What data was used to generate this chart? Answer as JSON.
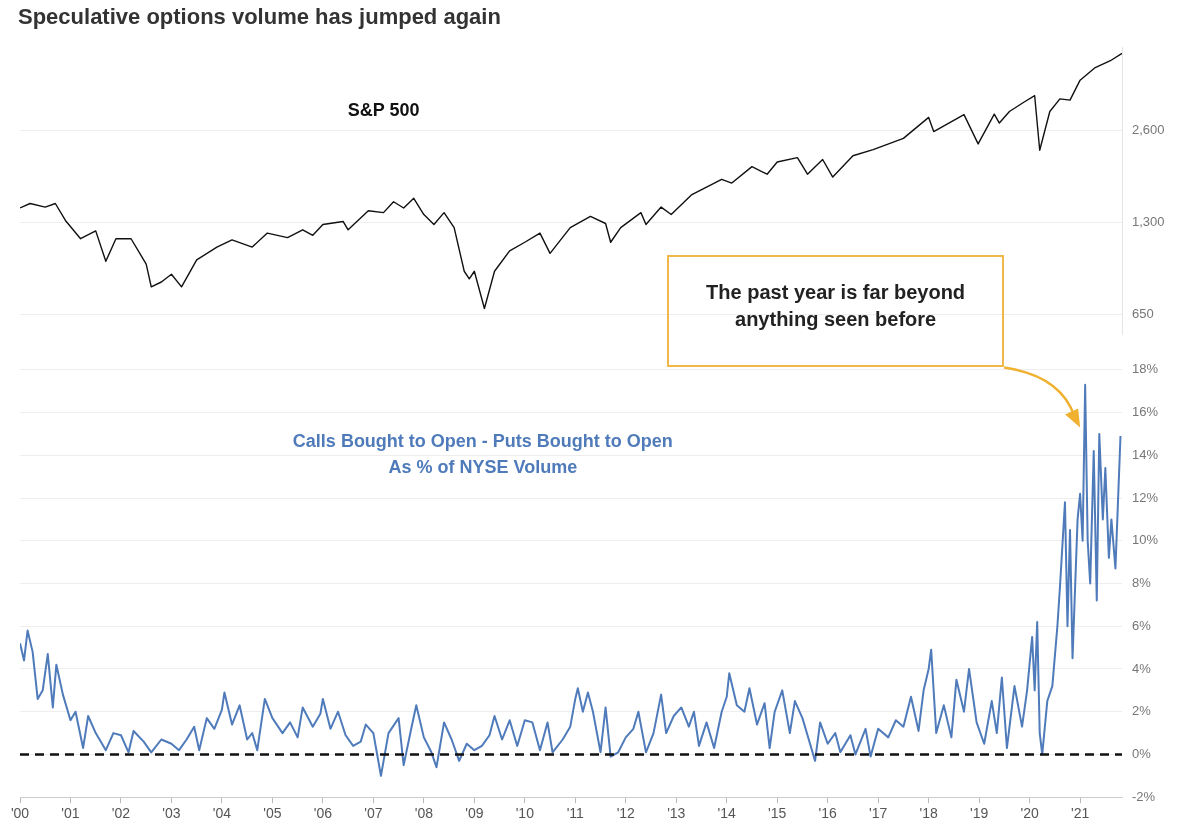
{
  "chart_data": [
    {
      "type": "line",
      "title": "Speculative options volume has jumped again",
      "log": "y",
      "grid": "y",
      "tick_labels": "y",
      "xlim": [
        2000,
        2021.83
      ],
      "ylim": [
        560,
        4850
      ],
      "yticks": [
        650,
        {
          "value": 1300,
          "label": "1,300"
        },
        {
          "value": 2600,
          "label": "2,600"
        }
      ],
      "x": [
        2000.0,
        2000.2,
        2000.5,
        2000.7,
        2000.9,
        2001.2,
        2001.5,
        2001.7,
        2001.9,
        2002.2,
        2002.5,
        2002.6,
        2002.8,
        2003.0,
        2003.2,
        2003.5,
        2003.9,
        2004.2,
        2004.6,
        2004.9,
        2005.3,
        2005.6,
        2005.8,
        2006.0,
        2006.4,
        2006.5,
        2006.9,
        2007.2,
        2007.4,
        2007.6,
        2007.8,
        2008.0,
        2008.2,
        2008.4,
        2008.6,
        2008.8,
        2008.9,
        2009.0,
        2009.2,
        2009.4,
        2009.7,
        2010.0,
        2010.3,
        2010.5,
        2010.9,
        2011.3,
        2011.6,
        2011.7,
        2011.9,
        2012.3,
        2012.4,
        2012.7,
        2012.9,
        2013.3,
        2013.9,
        2014.1,
        2014.5,
        2014.8,
        2015.0,
        2015.4,
        2015.6,
        2015.9,
        2016.1,
        2016.5,
        2016.9,
        2017.5,
        2018.0,
        2018.1,
        2018.7,
        2018.98,
        2019.3,
        2019.4,
        2019.6,
        2019.9,
        2020.1,
        2020.2,
        2020.4,
        2020.6,
        2020.8,
        2021.0,
        2021.3,
        2021.6,
        2021.83
      ],
      "series": [
        {
          "name": "S&P 500",
          "color": "#111111",
          "values": [
            1450,
            1500,
            1460,
            1500,
            1320,
            1150,
            1220,
            970,
            1150,
            1150,
            950,
            800,
            830,
            880,
            800,
            980,
            1080,
            1140,
            1080,
            1200,
            1160,
            1230,
            1180,
            1280,
            1310,
            1230,
            1420,
            1400,
            1520,
            1450,
            1560,
            1380,
            1280,
            1400,
            1250,
            900,
            850,
            900,
            680,
            900,
            1050,
            1120,
            1200,
            1030,
            1250,
            1360,
            1290,
            1120,
            1250,
            1400,
            1280,
            1460,
            1380,
            1600,
            1800,
            1750,
            1980,
            1870,
            2050,
            2120,
            1870,
            2090,
            1830,
            2150,
            2250,
            2450,
            2870,
            2580,
            2930,
            2350,
            2940,
            2750,
            3000,
            3230,
            3380,
            2240,
            3000,
            3300,
            3270,
            3800,
            4180,
            4400,
            4650
          ]
        }
      ]
    },
    {
      "type": "line",
      "grid": "y",
      "xlim": [
        2000,
        2021.83
      ],
      "xticks": [
        {
          "value": 2000,
          "label": "'00"
        },
        {
          "value": 2001,
          "label": "'01"
        },
        {
          "value": 2002,
          "label": "'02"
        },
        {
          "value": 2003,
          "label": "'03"
        },
        {
          "value": 2004,
          "label": "'04"
        },
        {
          "value": 2005,
          "label": "'05"
        },
        {
          "value": 2006,
          "label": "'06"
        },
        {
          "value": 2007,
          "label": "'07"
        },
        {
          "value": 2008,
          "label": "'08"
        },
        {
          "value": 2009,
          "label": "'09"
        },
        {
          "value": 2010,
          "label": "'10"
        },
        {
          "value": 2011,
          "label": "'11"
        },
        {
          "value": 2012,
          "label": "'12"
        },
        {
          "value": 2013,
          "label": "'13"
        },
        {
          "value": 2014,
          "label": "'14"
        },
        {
          "value": 2015,
          "label": "'15"
        },
        {
          "value": 2016,
          "label": "'16"
        },
        {
          "value": 2017,
          "label": "'17"
        },
        {
          "value": 2018,
          "label": "'18"
        },
        {
          "value": 2019,
          "label": "'19"
        },
        {
          "value": 2020,
          "label": "'20"
        },
        {
          "value": 2021,
          "label": "'21"
        }
      ],
      "ylim": [
        -2,
        18
      ],
      "yticks": [
        {
          "value": -2,
          "label": "-2%"
        },
        {
          "value": 0,
          "label": "0%"
        },
        {
          "value": 2,
          "label": "2%"
        },
        {
          "value": 4,
          "label": "4%"
        },
        {
          "value": 6,
          "label": "6%"
        },
        {
          "value": 8,
          "label": "8%"
        },
        {
          "value": 10,
          "label": "10%"
        },
        {
          "value": 12,
          "label": "12%"
        },
        {
          "value": 14,
          "label": "14%"
        },
        {
          "value": 16,
          "label": "16%"
        },
        {
          "value": 18,
          "label": "18%"
        }
      ],
      "ref_lines": [
        {
          "axis": "y",
          "value": 0,
          "color": "#111111",
          "line_style": "dashed"
        }
      ],
      "annotations": [
        "The past year is far beyond anything seen before"
      ],
      "x": [
        2000.0,
        2000.08,
        2000.15,
        2000.25,
        2000.35,
        2000.45,
        2000.55,
        2000.65,
        2000.72,
        2000.85,
        2001.0,
        2001.1,
        2001.25,
        2001.35,
        2001.5,
        2001.7,
        2001.85,
        2002.0,
        2002.15,
        2002.25,
        2002.45,
        2002.6,
        2002.8,
        2003.0,
        2003.15,
        2003.3,
        2003.45,
        2003.55,
        2003.7,
        2003.85,
        2004.0,
        2004.05,
        2004.2,
        2004.35,
        2004.5,
        2004.6,
        2004.7,
        2004.85,
        2005.0,
        2005.2,
        2005.35,
        2005.5,
        2005.6,
        2005.8,
        2005.95,
        2006.0,
        2006.15,
        2006.3,
        2006.45,
        2006.6,
        2006.75,
        2006.85,
        2007.0,
        2007.15,
        2007.3,
        2007.5,
        2007.6,
        2007.75,
        2007.85,
        2008.0,
        2008.15,
        2008.25,
        2008.4,
        2008.55,
        2008.7,
        2008.85,
        2009.0,
        2009.15,
        2009.3,
        2009.4,
        2009.55,
        2009.7,
        2009.85,
        2010.0,
        2010.15,
        2010.3,
        2010.45,
        2010.55,
        2010.75,
        2010.9,
        2011.0,
        2011.05,
        2011.15,
        2011.25,
        2011.35,
        2011.5,
        2011.6,
        2011.7,
        2011.85,
        2012.0,
        2012.15,
        2012.25,
        2012.4,
        2012.55,
        2012.7,
        2012.8,
        2012.95,
        2013.1,
        2013.25,
        2013.35,
        2013.45,
        2013.6,
        2013.75,
        2013.9,
        2014.0,
        2014.05,
        2014.2,
        2014.35,
        2014.45,
        2014.6,
        2014.75,
        2014.85,
        2014.95,
        2015.1,
        2015.25,
        2015.35,
        2015.5,
        2015.65,
        2015.75,
        2015.85,
        2016.0,
        2016.15,
        2016.25,
        2016.45,
        2016.55,
        2016.75,
        2016.85,
        2017.0,
        2017.2,
        2017.35,
        2017.5,
        2017.65,
        2017.8,
        2017.9,
        2018.0,
        2018.05,
        2018.15,
        2018.3,
        2018.45,
        2018.55,
        2018.7,
        2018.8,
        2018.95,
        2019.1,
        2019.25,
        2019.35,
        2019.45,
        2019.55,
        2019.7,
        2019.85,
        2019.95,
        2020.05,
        2020.1,
        2020.15,
        2020.2,
        2020.25,
        2020.35,
        2020.45,
        2020.55,
        2020.6,
        2020.7,
        2020.75,
        2020.8,
        2020.85,
        2020.95,
        2021.0,
        2021.05,
        2021.1,
        2021.15,
        2021.2,
        2021.27,
        2021.33,
        2021.38,
        2021.45,
        2021.5,
        2021.57,
        2021.62,
        2021.7,
        2021.8
      ],
      "series": [
        {
          "name": "Calls Bought to Open - Puts Bought to Open\nAs % of NYSE Volume",
          "color": "#4f7bbb",
          "values": [
            5.2,
            4.4,
            5.8,
            4.8,
            2.6,
            3.0,
            4.7,
            2.2,
            4.2,
            2.8,
            1.6,
            2.0,
            0.3,
            1.8,
            1.0,
            0.2,
            1.0,
            0.9,
            0.1,
            1.1,
            0.6,
            0.1,
            0.7,
            0.5,
            0.2,
            0.7,
            1.3,
            0.2,
            1.7,
            1.2,
            2.1,
            2.9,
            1.4,
            2.3,
            0.7,
            1.0,
            0.2,
            2.6,
            1.7,
            1.0,
            1.5,
            0.8,
            2.2,
            1.3,
            1.9,
            2.6,
            1.2,
            2.0,
            0.9,
            0.4,
            0.6,
            1.4,
            1.0,
            -1.0,
            1.0,
            1.7,
            -0.5,
            1.2,
            2.3,
            0.8,
            0.1,
            -0.6,
            1.5,
            0.7,
            -0.3,
            0.5,
            0.2,
            0.4,
            0.9,
            1.8,
            0.7,
            1.6,
            0.4,
            1.6,
            1.5,
            0.2,
            1.5,
            0.1,
            0.7,
            1.3,
            2.6,
            3.1,
            2.0,
            2.9,
            2.0,
            0.1,
            2.2,
            -0.1,
            0.1,
            0.8,
            1.2,
            2.0,
            0.1,
            1.0,
            2.8,
            1.0,
            1.8,
            2.2,
            1.3,
            2.0,
            0.4,
            1.5,
            0.3,
            2.0,
            2.7,
            3.8,
            2.3,
            2.0,
            3.1,
            1.4,
            2.4,
            0.3,
            2.0,
            3.0,
            1.0,
            2.5,
            1.7,
            0.5,
            -0.3,
            1.5,
            0.5,
            1.0,
            0.1,
            0.9,
            0.0,
            1.2,
            -0.1,
            1.2,
            0.8,
            1.6,
            1.3,
            2.7,
            1.1,
            3.0,
            4.0,
            4.9,
            1.0,
            2.3,
            0.8,
            3.5,
            2.0,
            4.0,
            1.5,
            0.5,
            2.5,
            1.0,
            3.6,
            0.3,
            3.2,
            1.3,
            3.0,
            5.5,
            3.0,
            6.2,
            1.0,
            0.0,
            2.5,
            3.2,
            6.0,
            7.8,
            11.8,
            6.0,
            10.5,
            4.5,
            11.0,
            12.2,
            10.0,
            17.3,
            10.0,
            8.0,
            14.2,
            7.2,
            15.0,
            11.0,
            13.4,
            9.2,
            11.0,
            8.7,
            14.9
          ]
        }
      ]
    }
  ]
}
